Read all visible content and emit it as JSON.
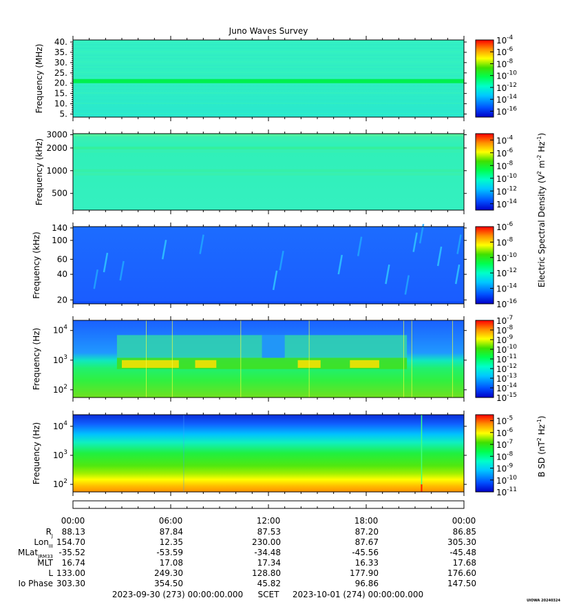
{
  "title": "Juno Waves Survey",
  "colors": {
    "spectrum": [
      "#0000c8",
      "#0050ff",
      "#00c8ff",
      "#00ffc8",
      "#00ff50",
      "#40e000",
      "#ffff00",
      "#ff9000",
      "#ff0000"
    ],
    "panel_base": [
      "#30f0c0",
      "#30f0b8",
      "#1e64ff",
      "#2070ff",
      "#20e060"
    ]
  },
  "chart_data": [
    {
      "type": "heatmap",
      "ylabel": "Frequency (MHz)",
      "y_ticks": [
        "40.",
        "35.",
        "30.",
        "25.",
        "20.",
        "15.",
        "10.",
        "5."
      ],
      "y_values": [
        40,
        35,
        30,
        25,
        20,
        15,
        10,
        5
      ],
      "ylim": [
        3.5,
        41
      ],
      "colorbar": {
        "ticks": [
          "10-4",
          "10-6",
          "10-8",
          "10-10",
          "10-12",
          "10-14",
          "10-16"
        ],
        "range": [
          -17,
          -4
        ]
      },
      "features": [
        {
          "kind": "band",
          "frequency_mhz": 21,
          "color": "#00f050"
        }
      ]
    },
    {
      "type": "heatmap",
      "ylabel": "Frequency (kHz)",
      "y_ticks": [
        "3000",
        "2000",
        "1000",
        "500"
      ],
      "y_values": [
        3000,
        2000,
        1000,
        500
      ],
      "y_scale": "log",
      "colorbar": {
        "ticks": [
          "10-4",
          "10-6",
          "10-8",
          "10-10",
          "10-12",
          "10-14"
        ],
        "range": [
          -15,
          -3
        ]
      }
    },
    {
      "type": "heatmap",
      "ylabel": "Frequency (kHz)",
      "y_ticks": [
        "140",
        "100",
        "60",
        "40",
        "20"
      ],
      "y_values": [
        140,
        100,
        60,
        40,
        20
      ],
      "y_scale": "log",
      "colorbar": {
        "ticks": [
          "10-6",
          "10-8",
          "10-10",
          "10-12",
          "10-14",
          "10-16"
        ],
        "range": [
          -16,
          -6
        ]
      }
    },
    {
      "type": "heatmap",
      "ylabel": "Frequency (Hz)",
      "y_ticks": [
        {
          "base": "10",
          "exp": "4"
        },
        {
          "base": "10",
          "exp": "3"
        },
        {
          "base": "10",
          "exp": "2"
        }
      ],
      "y_values": [
        10000,
        1000,
        100
      ],
      "y_scale": "log",
      "colorbar": {
        "ticks": [
          "10-7",
          "10-8",
          "10-9",
          "10-10",
          "10-11",
          "10-12",
          "10-13",
          "10-14",
          "10-15"
        ],
        "range": [
          -15,
          -7
        ]
      },
      "features": [
        {
          "kind": "emission_region",
          "start_hour": 2.7,
          "end_hour": 20.5,
          "color": "#30d0b0"
        }
      ]
    },
    {
      "type": "heatmap",
      "ylabel": "Frequency (Hz)",
      "y_ticks": [
        {
          "base": "10",
          "exp": "4"
        },
        {
          "base": "10",
          "exp": "3"
        },
        {
          "base": "10",
          "exp": "2"
        }
      ],
      "y_values": [
        10000,
        1000,
        100
      ],
      "y_scale": "log",
      "colorbar": {
        "ticks": [
          "10-5",
          "10-6",
          "10-7",
          "10-8",
          "10-9",
          "10-10",
          "10-11"
        ],
        "range": [
          -11,
          -4.5
        ]
      }
    }
  ],
  "colorbar_labels": {
    "electric": {
      "prefix": "Electric Spectral Density (V",
      "sup1": "2",
      "mid": " m",
      "sup2": "-2",
      "mid2": " Hz",
      "sup3": "-1",
      "suffix": ")"
    },
    "magnetic": {
      "prefix": "B SD (nT",
      "sup1": "2",
      "mid": " Hz",
      "sup2": "-1",
      "suffix": ")"
    }
  },
  "x_ticks": [
    "00:00",
    "06:00",
    "12:00",
    "18:00",
    "00:00"
  ],
  "x_hours": [
    0,
    6,
    12,
    18,
    24
  ],
  "ephemeris": [
    {
      "label": "R",
      "sub": "J",
      "values": [
        "88.13",
        "87.84",
        "87.53",
        "87.20",
        "86.85"
      ]
    },
    {
      "label": "Lon",
      "sub": "III",
      "values": [
        "154.70",
        "12.35",
        "230.00",
        "87.67",
        "305.30"
      ]
    },
    {
      "label": "MLat",
      "sub": "JRM33",
      "values": [
        "-35.52",
        "-53.59",
        "-34.48",
        "-45.56",
        "-45.48"
      ]
    },
    {
      "label": "MLT",
      "sub": "",
      "values": [
        "16.74",
        "17.08",
        "17.34",
        "16.33",
        "17.68"
      ]
    },
    {
      "label": "L",
      "sub": "",
      "values": [
        "133.00",
        "249.30",
        "128.80",
        "177.90",
        "176.60"
      ]
    },
    {
      "label": "Io Phase",
      "sub": "",
      "values": [
        "303.30",
        "354.50",
        "45.82",
        "96.86",
        "147.50"
      ]
    }
  ],
  "footer": {
    "start": "2023-09-30 (273) 00:00:00.000",
    "scet": "SCET",
    "end": "2023-10-01 (274) 00:00:00.000"
  },
  "watermark": "UIOWA 20240324"
}
